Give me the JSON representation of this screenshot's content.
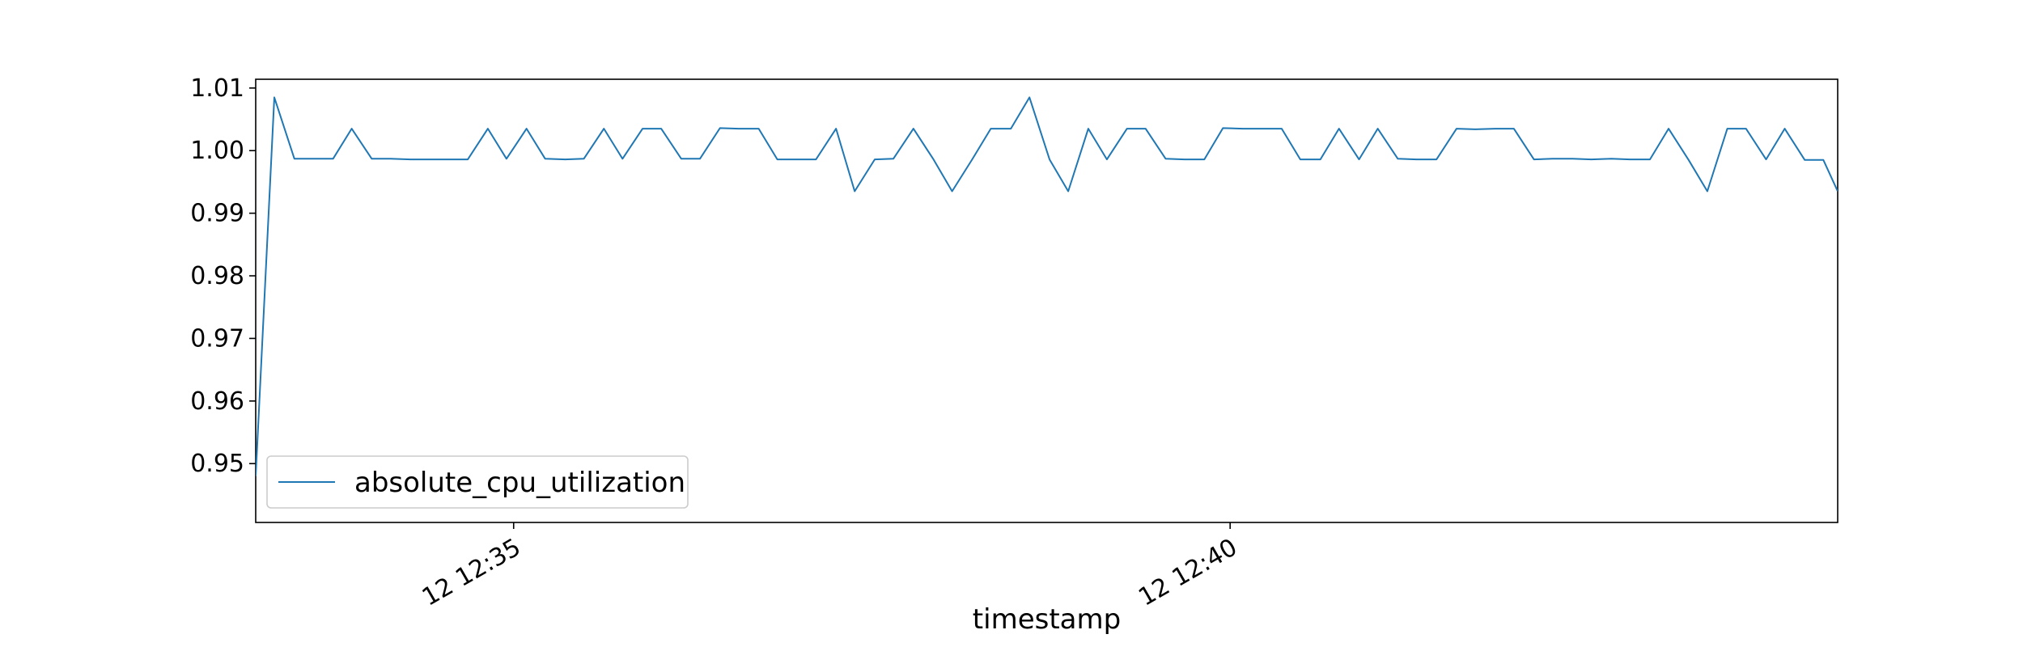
{
  "chart_data": {
    "type": "line",
    "title": "",
    "xlabel": "timestamp",
    "ylabel": "",
    "x_axis": {
      "scale": "time",
      "tick_labels": [
        "12 12:35",
        "12 12:40"
      ],
      "tick_minutes": [
        35,
        40
      ],
      "range_minutes": [
        33.2,
        44.24
      ]
    },
    "y_axis": {
      "range": [
        0.9406,
        1.0114
      ],
      "ticks": [
        0.95,
        0.96,
        0.97,
        0.98,
        0.99,
        1.0,
        1.01
      ],
      "tick_labels": [
        "0.95",
        "0.96",
        "0.97",
        "0.98",
        "0.99",
        "1.00",
        "1.01"
      ]
    },
    "grid": false,
    "legend": {
      "position": "lower-left",
      "entries": [
        "absolute_cpu_utilization"
      ]
    },
    "series": [
      {
        "name": "absolute_cpu_utilization",
        "color": "#1f77b4",
        "x_minutes": [
          33.2,
          33.33,
          33.47,
          33.6,
          33.74,
          33.87,
          34.01,
          34.14,
          34.28,
          34.41,
          34.55,
          34.68,
          34.82,
          34.95,
          35.09,
          35.22,
          35.36,
          35.49,
          35.63,
          35.76,
          35.9,
          36.03,
          36.17,
          36.3,
          36.44,
          36.57,
          36.71,
          36.84,
          36.98,
          37.11,
          37.25,
          37.38,
          37.52,
          37.65,
          37.79,
          37.93,
          38.06,
          38.2,
          38.33,
          38.47,
          38.6,
          38.74,
          38.87,
          39.01,
          39.14,
          39.28,
          39.41,
          39.55,
          39.68,
          39.82,
          39.95,
          40.09,
          40.22,
          40.36,
          40.49,
          40.63,
          40.76,
          40.9,
          41.03,
          41.17,
          41.3,
          41.44,
          41.58,
          41.71,
          41.85,
          41.98,
          42.12,
          42.25,
          42.39,
          42.52,
          42.66,
          42.79,
          42.93,
          43.06,
          43.2,
          43.33,
          43.47,
          43.6,
          43.74,
          43.87,
          44.01,
          44.14,
          44.24
        ],
        "values": [
          0.948,
          1.0085,
          0.9987,
          0.9987,
          0.9987,
          1.0035,
          0.9987,
          0.9987,
          0.9986,
          0.9986,
          0.9986,
          0.9986,
          1.0035,
          0.9987,
          1.0035,
          0.9987,
          0.9986,
          0.9987,
          1.0035,
          0.9987,
          1.0035,
          1.0035,
          0.9987,
          0.9987,
          1.0036,
          1.0035,
          1.0035,
          0.9986,
          0.9986,
          0.9986,
          1.0035,
          0.9935,
          0.9986,
          0.9987,
          1.0035,
          0.9986,
          0.9935,
          0.9986,
          1.0035,
          1.0035,
          1.0085,
          0.9986,
          0.9935,
          1.0035,
          0.9986,
          1.0035,
          1.0035,
          0.9987,
          0.9986,
          0.9986,
          1.0036,
          1.0035,
          1.0035,
          1.0035,
          0.9986,
          0.9986,
          1.0035,
          0.9986,
          1.0035,
          0.9987,
          0.9986,
          0.9986,
          1.0035,
          1.0034,
          1.0035,
          1.0035,
          0.9986,
          0.9987,
          0.9987,
          0.9986,
          0.9987,
          0.9986,
          0.9986,
          1.0035,
          0.9985,
          0.9935,
          1.0035,
          1.0035,
          0.9986,
          1.0035,
          0.9985,
          0.9985,
          0.9935
        ]
      }
    ]
  }
}
